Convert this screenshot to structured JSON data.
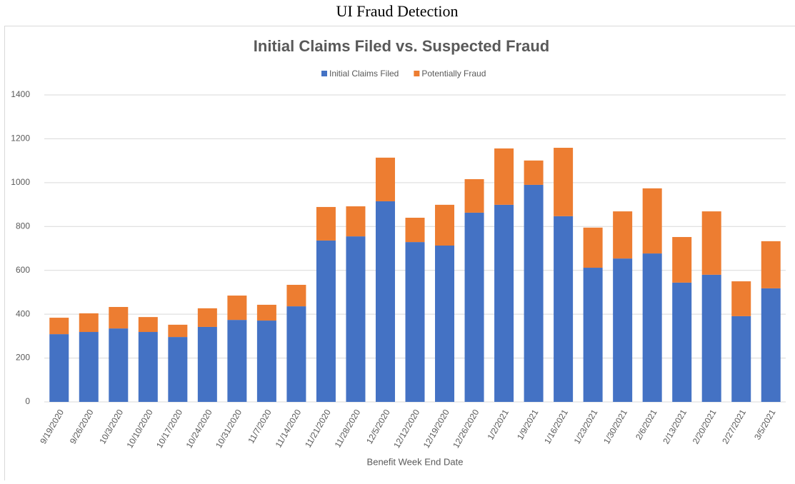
{
  "page_title": "UI Fraud Detection",
  "chart_data": {
    "type": "stacked_bar",
    "title": "Initial Claims Filed vs. Suspected Fraud",
    "x_label": "Benefit Week End Date",
    "categories": [
      "9/19/2020",
      "9/26/2020",
      "10/3/2020",
      "10/10/2020",
      "10/17/2020",
      "10/24/2020",
      "10/31/2020",
      "11/7/2020",
      "11/14/2020",
      "11/21/2020",
      "11/28/2020",
      "12/5/2020",
      "12/12/2020",
      "12/19/2020",
      "12/26/2020",
      "1/2/2021",
      "1/9/2021",
      "1/16/2021",
      "1/23/2021",
      "1/30/2021",
      "2/6/2021",
      "2/13/2021",
      "2/20/2021",
      "2/27/2021",
      "3/5/2021"
    ],
    "series": [
      {
        "name": "Initial Claims Filed",
        "color": "#4472c4",
        "values": [
          309,
          319,
          335,
          319,
          296,
          342,
          374,
          371,
          436,
          736,
          755,
          915,
          729,
          713,
          863,
          899,
          990,
          847,
          612,
          654,
          677,
          544,
          580,
          391,
          518
        ]
      },
      {
        "name": "Potentially Fraud",
        "color": "#ed7d31",
        "values": [
          75,
          85,
          98,
          68,
          56,
          85,
          111,
          72,
          98,
          153,
          137,
          199,
          111,
          186,
          153,
          257,
          111,
          312,
          183,
          215,
          297,
          208,
          289,
          159,
          215
        ]
      }
    ],
    "ylim": [
      0,
      1400
    ],
    "yticks": [
      0,
      200,
      400,
      600,
      800,
      1000,
      1200,
      1400
    ],
    "grid": true,
    "legend": "top"
  }
}
